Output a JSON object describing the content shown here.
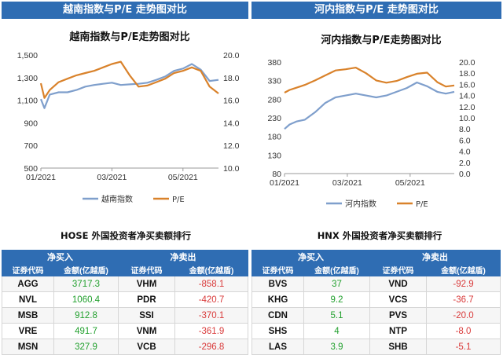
{
  "left": {
    "banner": "越南指数与P/E 走势图对比",
    "chart": {
      "title": "越南指数与P/E走势图对比",
      "type": "line",
      "x_ticks": [
        "01/2021",
        "03/2021",
        "05/2021"
      ],
      "y_left": {
        "min": 500,
        "max": 1500,
        "ticks": [
          "1,500",
          "1,300",
          "1,100",
          "900",
          "700",
          "500"
        ]
      },
      "y_right": {
        "min": 10.0,
        "max": 20.0,
        "ticks": [
          "20.0",
          "18.0",
          "16.0",
          "14.0",
          "12.0",
          "10.0"
        ]
      },
      "legend": [
        "越南指数",
        "P/E"
      ],
      "colors": {
        "index": "#7f9fcc",
        "pe": "#d9822b"
      },
      "x_frac": [
        0.0,
        0.02,
        0.05,
        0.1,
        0.15,
        0.2,
        0.25,
        0.3,
        0.35,
        0.4,
        0.45,
        0.5,
        0.55,
        0.6,
        0.65,
        0.7,
        0.75,
        0.8,
        0.85,
        0.9,
        0.95,
        1.0
      ],
      "index_values": [
        1110,
        1030,
        1150,
        1170,
        1170,
        1190,
        1220,
        1235,
        1245,
        1255,
        1235,
        1240,
        1245,
        1255,
        1280,
        1310,
        1360,
        1380,
        1420,
        1370,
        1270,
        1280
      ],
      "pe_values": [
        17.5,
        16.2,
        16.9,
        17.6,
        17.9,
        18.2,
        18.4,
        18.6,
        18.9,
        19.2,
        19.4,
        18.2,
        17.2,
        17.3,
        17.6,
        17.9,
        18.4,
        18.6,
        18.9,
        18.6,
        17.2,
        16.6
      ]
    },
    "rank_title": "HOSE 外国投资者净买卖额排行",
    "table": {
      "buy_header": "净买入",
      "sell_header": "净卖出",
      "col_code": "证券代码",
      "col_amount": "金额(亿越盾)",
      "rows": [
        {
          "buy_code": "AGG",
          "buy_amount": "3717.3",
          "sell_code": "VHM",
          "sell_amount": "-858.1"
        },
        {
          "buy_code": "NVL",
          "buy_amount": "1060.4",
          "sell_code": "PDR",
          "sell_amount": "-420.7"
        },
        {
          "buy_code": "MSB",
          "buy_amount": "912.8",
          "sell_code": "SSI",
          "sell_amount": "-370.1"
        },
        {
          "buy_code": "VRE",
          "buy_amount": "491.7",
          "sell_code": "VNM",
          "sell_amount": "-361.9"
        },
        {
          "buy_code": "MSN",
          "buy_amount": "327.9",
          "sell_code": "VCB",
          "sell_amount": "-296.8"
        }
      ]
    }
  },
  "right": {
    "banner": "河内指数与P/E 走势图对比",
    "chart": {
      "title": "河内指数与P/E走势图对比",
      "type": "line",
      "x_ticks": [
        "01/2021",
        "03/2021",
        "05/2021"
      ],
      "y_left": {
        "min": 80,
        "max": 380,
        "ticks": [
          "380",
          "330",
          "280",
          "230",
          "180",
          "130",
          "80"
        ]
      },
      "y_right": {
        "min": 0.0,
        "max": 20.0,
        "ticks": [
          "20.0",
          "18.0",
          "16.0",
          "14.0",
          "12.0",
          "10.0",
          "8.0",
          "6.0",
          "4.0",
          "2.0",
          "0.0"
        ]
      },
      "legend": [
        "河内指数",
        "P/E"
      ],
      "colors": {
        "index": "#7f9fcc",
        "pe": "#d9822b"
      },
      "x_frac": [
        0.0,
        0.03,
        0.07,
        0.12,
        0.18,
        0.24,
        0.3,
        0.36,
        0.42,
        0.48,
        0.54,
        0.6,
        0.66,
        0.72,
        0.78,
        0.84,
        0.9,
        0.95,
        1.0
      ],
      "index_values": [
        200,
        212,
        220,
        225,
        245,
        270,
        285,
        290,
        295,
        290,
        285,
        290,
        300,
        310,
        325,
        315,
        300,
        295,
        300
      ],
      "pe_values": [
        14.5,
        15.0,
        15.4,
        15.9,
        16.7,
        17.6,
        18.5,
        18.7,
        19.0,
        18.0,
        16.7,
        16.3,
        16.6,
        17.3,
        17.9,
        18.1,
        16.4,
        15.6,
        15.8
      ]
    },
    "rank_title": "HNX 外国投资者净买卖额排行",
    "table": {
      "buy_header": "净买入",
      "sell_header": "净卖出",
      "col_code": "证券代码",
      "col_amount": "金额(亿越盾)",
      "rows": [
        {
          "buy_code": "BVS",
          "buy_amount": "37",
          "sell_code": "VND",
          "sell_amount": "-92.9"
        },
        {
          "buy_code": "KHG",
          "buy_amount": "9.2",
          "sell_code": "VCS",
          "sell_amount": "-36.7"
        },
        {
          "buy_code": "CDN",
          "buy_amount": "5.1",
          "sell_code": "PVS",
          "sell_amount": "-20.0"
        },
        {
          "buy_code": "SHS",
          "buy_amount": "4",
          "sell_code": "NTP",
          "sell_amount": "-8.0"
        },
        {
          "buy_code": "LAS",
          "buy_amount": "3.9",
          "sell_code": "SHB",
          "sell_amount": "-5.1"
        }
      ]
    }
  }
}
